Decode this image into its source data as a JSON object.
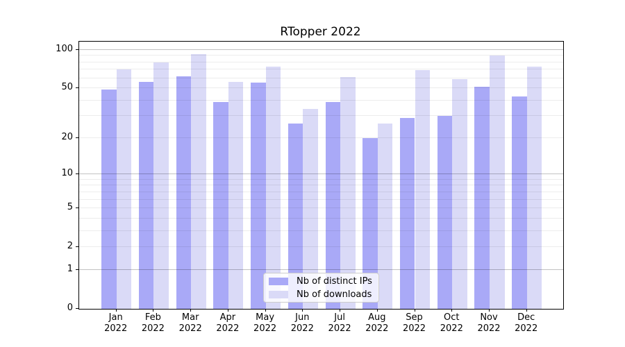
{
  "title": "RTopper 2022",
  "chart_data": {
    "type": "bar",
    "title": "RTopper 2022",
    "categories": [
      "Jan",
      "Feb",
      "Mar",
      "Apr",
      "May",
      "Jun",
      "Jul",
      "Aug",
      "Sep",
      "Oct",
      "Nov",
      "Dec"
    ],
    "year_label": "2022",
    "series": [
      {
        "name": "Nb of distinct IPs",
        "key": "ips",
        "color": "#a9a9f7",
        "values": [
          49,
          56,
          62,
          39,
          55,
          26,
          39,
          20,
          29,
          30,
          51,
          43
        ]
      },
      {
        "name": "Nb of downloads",
        "key": "downloads",
        "color": "#dadaf7",
        "values": [
          70,
          80,
          92,
          56,
          74,
          34,
          61,
          26,
          69,
          59,
          90,
          74
        ]
      }
    ],
    "yscale": "log1p",
    "ylim": [
      0,
      114
    ],
    "y_ticks": [
      0,
      1,
      2,
      5,
      10,
      20,
      50,
      100
    ],
    "major_gridlines": [
      1,
      10,
      100
    ],
    "minor_gridlines": [
      2,
      3,
      4,
      5,
      6,
      7,
      8,
      9,
      20,
      30,
      40,
      50,
      60,
      70,
      80,
      90
    ],
    "grid": "horizontal",
    "legend_position": "lower center"
  },
  "colors": {
    "bar_ips": "#a9a9f7",
    "bar_downloads": "#dadaf7",
    "spine": "#000000",
    "grid_major": "#c2c2c2",
    "grid_minor": "#ececec",
    "legend_border": "#cccccc"
  }
}
